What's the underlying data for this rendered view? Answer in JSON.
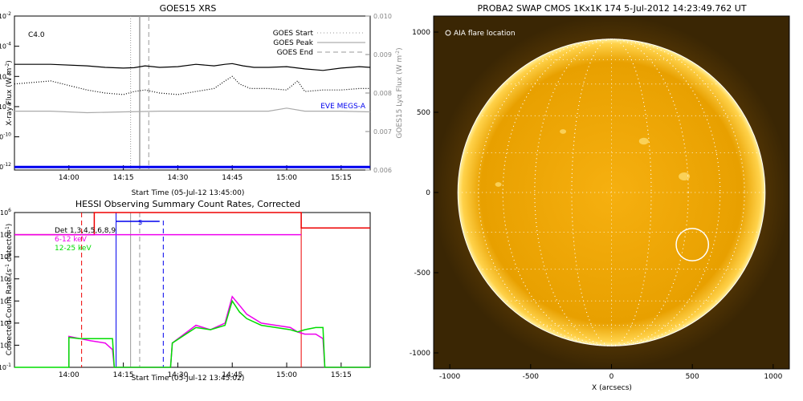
{
  "chart_data": [
    {
      "id": "goes",
      "type": "line",
      "title": "GOES15 XRS",
      "flare_class": "C4.0",
      "xlabel": "Start Time (05-Jul-12 13:45:00)",
      "ylabel": "X-ray Flux (W m",
      "ylabel_exp": "-2",
      "ylabel_close": ")",
      "ylabel_right": "GOES15 Lyα Flux (W m",
      "ylabel_right_exp": "-2",
      "ylabel_right_close": ")",
      "x_ticks": [
        "14:00",
        "14:15",
        "14:30",
        "14:45",
        "15:00",
        "15:15"
      ],
      "x_tick_minutes": [
        15,
        30,
        45,
        60,
        75,
        90
      ],
      "xlim_minutes": [
        0,
        98
      ],
      "y_ticks": [
        "-2",
        "-4",
        "-6",
        "-8",
        "-10",
        "-12"
      ],
      "y_tick_values": [
        -2,
        -4,
        -6,
        -8,
        -10,
        -12
      ],
      "ylim_log10": [
        -12.2,
        -2
      ],
      "y_right_ticks": [
        "0.010",
        "0.009",
        "0.008",
        "0.007",
        "0.006"
      ],
      "y_right_values": [
        0.01,
        0.009,
        0.008,
        0.007,
        0.006
      ],
      "ylim_right": [
        0.006,
        0.01
      ],
      "legend": [
        {
          "label": "GOES Start",
          "style": "dotted",
          "color": "#999999"
        },
        {
          "label": "GOES Peak",
          "style": "solid",
          "color": "#999999"
        },
        {
          "label": "GOES End",
          "style": "dashed",
          "color": "#999999"
        }
      ],
      "eve_label": "EVE MEGS-A",
      "eve_color": "#0000ee",
      "flare_lines_minutes": {
        "start": 32,
        "peak": 34.5,
        "end": 37
      },
      "series": [
        {
          "style": "solid",
          "color": "#000000",
          "x": [
            0,
            10,
            20,
            25,
            30,
            33,
            36,
            40,
            45,
            50,
            55,
            58,
            60,
            63,
            66,
            70,
            75,
            80,
            85,
            90,
            95,
            98
          ],
          "y": [
            -5.2,
            -5.2,
            -5.3,
            -5.4,
            -5.45,
            -5.42,
            -5.3,
            -5.4,
            -5.35,
            -5.2,
            -5.3,
            -5.2,
            -5.15,
            -5.3,
            -5.4,
            -5.4,
            -5.35,
            -5.5,
            -5.6,
            -5.45,
            -5.35,
            -5.4
          ]
        },
        {
          "style": "dotted",
          "color": "#000000",
          "x": [
            0,
            5,
            10,
            15,
            20,
            25,
            30,
            33,
            36,
            40,
            45,
            50,
            55,
            58,
            60,
            62,
            65,
            70,
            75,
            78,
            80,
            85,
            90,
            95,
            98
          ],
          "y": [
            -6.5,
            -6.4,
            -6.3,
            -6.6,
            -6.9,
            -7.1,
            -7.2,
            -7.0,
            -6.9,
            -7.1,
            -7.2,
            -7.0,
            -6.8,
            -6.3,
            -6.0,
            -6.5,
            -6.8,
            -6.8,
            -6.9,
            -6.3,
            -7.0,
            -6.9,
            -6.9,
            -6.8,
            -6.8
          ]
        },
        {
          "style": "solid",
          "color": "#aaaaaa",
          "x": [
            0,
            10,
            20,
            30,
            40,
            50,
            60,
            70,
            75,
            80,
            90,
            98
          ],
          "y": [
            -8.3,
            -8.3,
            -8.4,
            -8.35,
            -8.3,
            -8.3,
            -8.3,
            -8.3,
            -8.1,
            -8.3,
            -8.3,
            -8.35
          ]
        },
        {
          "style": "solid",
          "color": "#0000ee",
          "x": [
            0,
            98
          ],
          "y": [
            -12,
            -12
          ]
        }
      ]
    },
    {
      "id": "hessi",
      "type": "line",
      "title": "HESSI Observing Summary Count Rates, Corrected",
      "xlabel": "Start Time (05-Jul-12 13:45:02)",
      "ylabel": "Corrected Count Rate (s",
      "ylabel_exp": "-1",
      "ylabel_mid": " detector",
      "ylabel_exp2": "-1",
      "ylabel_close": ")",
      "x_ticks": [
        "14:00",
        "14:15",
        "14:30",
        "14:45",
        "15:00",
        "15:15"
      ],
      "x_tick_minutes": [
        15,
        30,
        45,
        60,
        75,
        90
      ],
      "xlim_minutes": [
        0,
        98
      ],
      "y_ticks": [
        "6",
        "5",
        "4",
        "3",
        "2",
        "1",
        "0",
        "-1"
      ],
      "y_tick_values": [
        6,
        5,
        4,
        3,
        2,
        1,
        0,
        -1
      ],
      "ylim_log10": [
        -1,
        6
      ],
      "legend": [
        {
          "label": "Det 1,3,4,5,6,8,9",
          "color": "#000000"
        },
        {
          "label": "6-12 keV",
          "color": "#ee00ee"
        },
        {
          "label": "12-25 keV",
          "color": "#00dd00"
        }
      ],
      "segment_label": "S",
      "red_lines_minutes": [
        18.5,
        79
      ],
      "blue_lines_minutes": {
        "start": 28,
        "end": 41
      },
      "flare_lines_minutes": {
        "start": 32,
        "peak": 34.5
      },
      "series": [
        {
          "name": "red",
          "color": "#ee0000",
          "x": [
            0,
            22,
            22,
            79,
            79,
            98
          ],
          "y": [
            5.0,
            5.0,
            6.0,
            6.0,
            5.3,
            5.3
          ]
        },
        {
          "name": "magenta-band",
          "color": "#ee00ee",
          "x": [
            0,
            28,
            42,
            79
          ],
          "y": [
            5.0,
            5.0,
            5.0,
            5.0
          ]
        },
        {
          "name": "blue",
          "color": "#0000ee",
          "x": [
            28,
            40
          ],
          "y": [
            5.6,
            5.6
          ]
        },
        {
          "name": "6-12 keV",
          "color": "#ee00ee",
          "x": [
            15,
            15,
            18,
            21,
            25,
            27,
            27.5,
            43,
            43.5,
            50,
            54,
            58,
            60,
            62,
            64,
            68,
            72,
            76,
            78,
            80,
            83,
            85,
            85.5,
            98
          ],
          "y": [
            -1,
            0.4,
            0.3,
            0.2,
            0.1,
            -0.2,
            -1,
            -1,
            0.1,
            0.9,
            0.7,
            1.0,
            2.2,
            1.8,
            1.4,
            1.0,
            0.9,
            0.8,
            0.6,
            0.5,
            0.5,
            0.3,
            -1,
            -1
          ]
        },
        {
          "name": "12-25 keV",
          "color": "#00dd00",
          "x": [
            0,
            15,
            15,
            18,
            21,
            25,
            27,
            27.5,
            43,
            43.5,
            50,
            54,
            58,
            60,
            62,
            64,
            68,
            72,
            76,
            78,
            80,
            83,
            85,
            85.5,
            98
          ],
          "y": [
            -1,
            -1,
            0.35,
            0.3,
            0.3,
            0.3,
            0.3,
            -1,
            -1,
            0.1,
            0.8,
            0.7,
            0.9,
            2.0,
            1.5,
            1.2,
            0.9,
            0.8,
            0.7,
            0.6,
            0.7,
            0.8,
            0.8,
            -1,
            -1
          ]
        }
      ]
    },
    {
      "id": "swap",
      "type": "scatter",
      "title": "PROBA2 SWAP CMOS 1Kx1K 174   5-Jul-2012 14:23:49.762 UT",
      "xlabel": "X (arcsecs)",
      "ylabel": "",
      "x_ticks": [
        "-1000",
        "-500",
        "0",
        "500",
        "1000"
      ],
      "x_tick_values": [
        -1000,
        -500,
        0,
        500,
        1000
      ],
      "y_ticks": [
        "1000",
        "500",
        "0",
        "-500",
        "-1000"
      ],
      "y_tick_values": [
        1000,
        500,
        0,
        -500,
        -1000
      ],
      "xlim": [
        -1100,
        1100
      ],
      "ylim": [
        -1100,
        1100
      ],
      "legend_label": "AIA flare location",
      "solar_radius_arcsec": 950,
      "flare_location": {
        "x": 500,
        "y": -325,
        "radius": 100
      },
      "background_color": "#3a2604",
      "disk_color": "#f0a000"
    }
  ]
}
